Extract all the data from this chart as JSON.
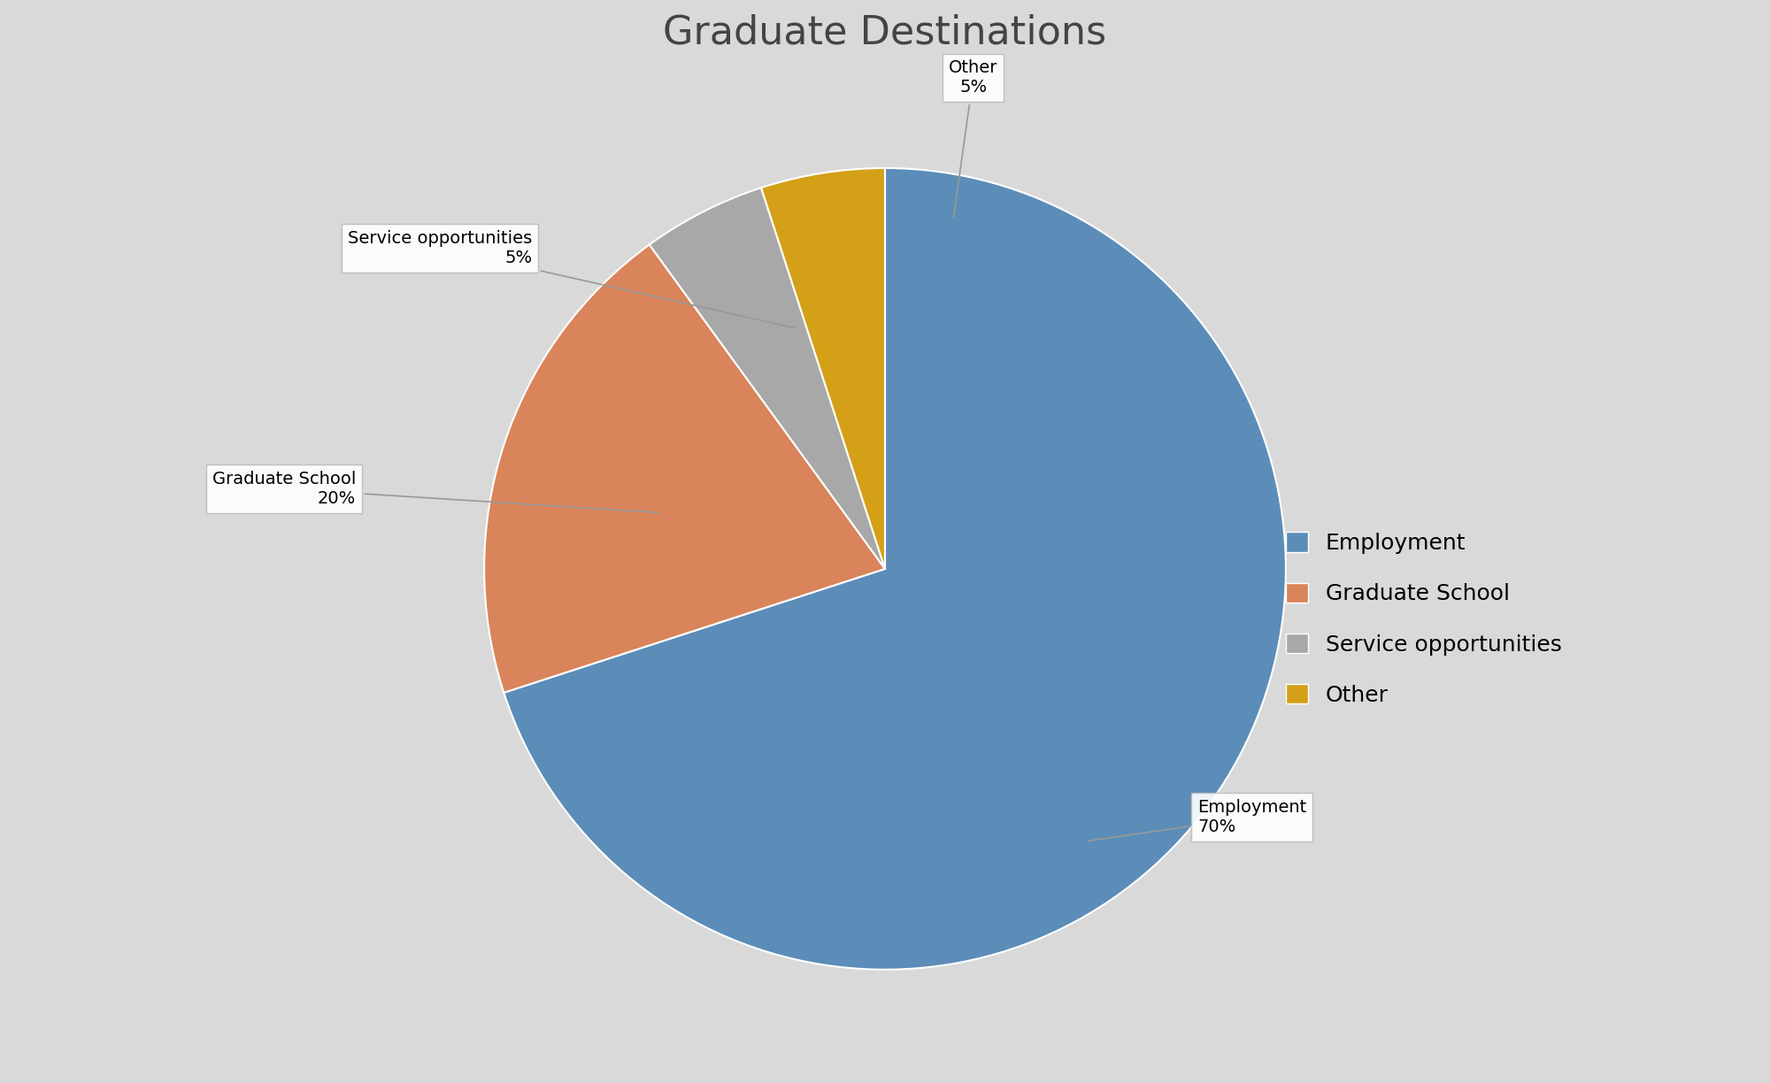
{
  "title": "Graduate Destinations",
  "labels": [
    "Employment",
    "Graduate School",
    "Service opportunities",
    "Other"
  ],
  "values": [
    70,
    20,
    5,
    5
  ],
  "colors": [
    "#5b8db8",
    "#d9845a",
    "#a8a8a8",
    "#d4a017"
  ],
  "background_color": "#d9d9d9",
  "title_fontsize": 32,
  "legend_fontsize": 18,
  "label_fontsize": 14,
  "startangle": 90
}
